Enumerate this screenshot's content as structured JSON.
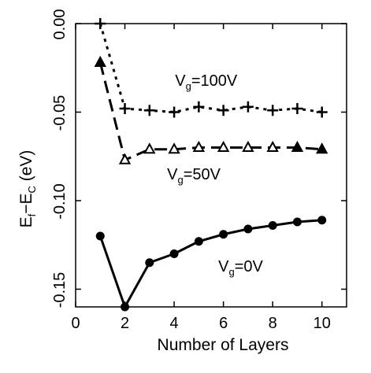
{
  "chart_data": {
    "type": "line",
    "xlabel": "Number of Layers",
    "ylabel": {
      "main": "E",
      "sub1": "f",
      "mid": "−E",
      "sub2": "C",
      "unit": " (eV)"
    },
    "xlim": [
      0,
      11
    ],
    "ylim": [
      -0.16,
      0.0
    ],
    "xticks": [
      0,
      2,
      4,
      6,
      8,
      10
    ],
    "yticks": [
      0.0,
      -0.05,
      -0.1,
      -0.15
    ],
    "xtick_labels": [
      "0",
      "2",
      "4",
      "6",
      "8",
      "10"
    ],
    "ytick_labels": [
      "0.00",
      "-0.05",
      "-0.10",
      "-0.15"
    ],
    "grid": false,
    "series": [
      {
        "name": "V_g=100V",
        "x": [
          1,
          2,
          3,
          4,
          5,
          6,
          7,
          8,
          9,
          10
        ],
        "y": [
          0.0,
          -0.048,
          -0.049,
          -0.05,
          -0.047,
          -0.049,
          -0.047,
          -0.049,
          -0.048,
          -0.05
        ],
        "marker": "plus",
        "dash": "dotted",
        "label": {
          "main": "V",
          "sub": "g",
          "rest": "=100V",
          "x": 5.3,
          "y": -0.035
        }
      },
      {
        "name": "V_g=50V",
        "x": [
          1,
          2,
          3,
          4,
          5,
          6,
          7,
          8,
          9,
          10
        ],
        "y": [
          -0.022,
          -0.077,
          -0.071,
          -0.071,
          -0.07,
          -0.07,
          -0.07,
          -0.07,
          -0.07,
          -0.071
        ],
        "marker": "triangle",
        "dash": "dashed",
        "label": {
          "main": "V",
          "sub": "g",
          "rest": "=50V",
          "x": 4.8,
          "y": -0.088
        }
      },
      {
        "name": "V_g=0V",
        "x": [
          1,
          2,
          3,
          4,
          5,
          6,
          7,
          8,
          9,
          10
        ],
        "y": [
          -0.12,
          -0.16,
          -0.135,
          -0.13,
          -0.123,
          -0.119,
          -0.116,
          -0.114,
          -0.112,
          -0.111
        ],
        "marker": "circle",
        "dash": "solid",
        "label": {
          "main": "V",
          "sub": "g",
          "rest": "=0V",
          "x": 6.7,
          "y": -0.14
        }
      }
    ]
  }
}
